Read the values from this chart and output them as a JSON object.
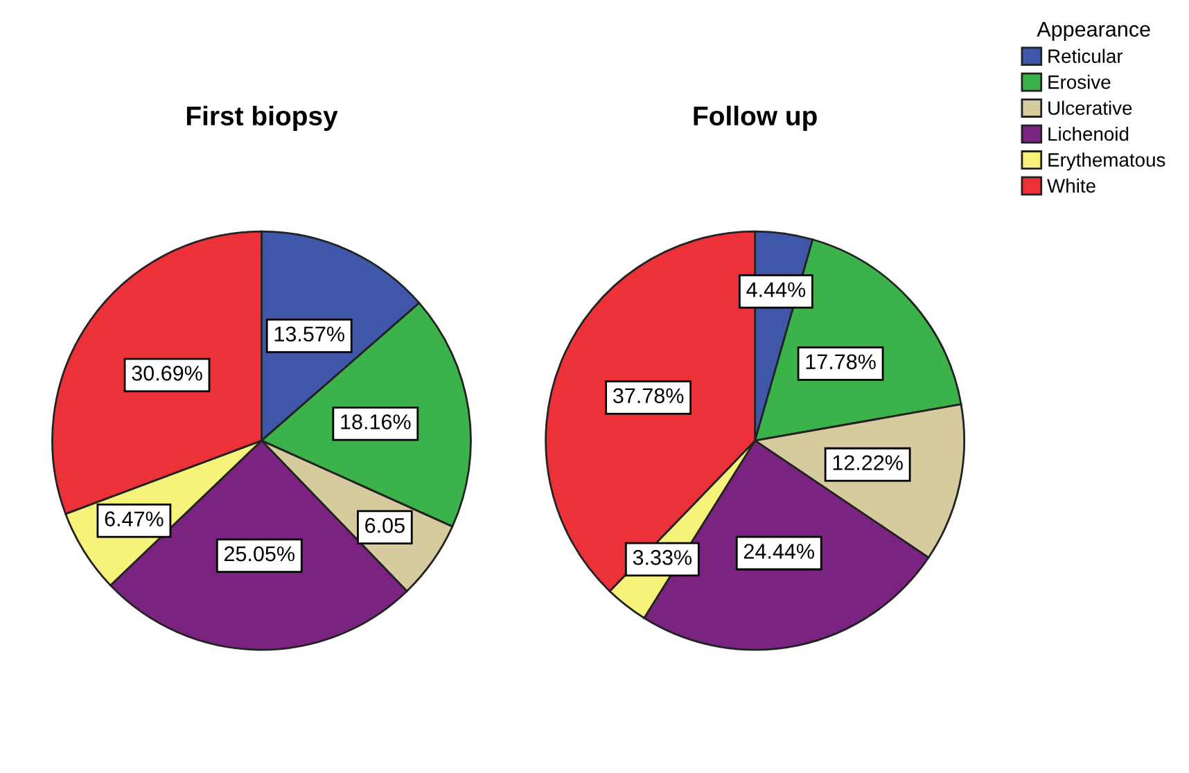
{
  "chart_data": [
    {
      "type": "pie",
      "title": "First biopsy",
      "categories": [
        "Reticular",
        "Erosive",
        "Ulcerative",
        "Lichenoid",
        "Erythematous",
        "White"
      ],
      "values": [
        13.57,
        18.16,
        6.05,
        25.05,
        6.47,
        30.69
      ],
      "value_labels": [
        "13.57%",
        "18.16%",
        "6.05",
        "25.05%",
        "6.47%",
        "30.69%"
      ],
      "colors": [
        "#3f57a8",
        "#3bb34a",
        "#d5cb9e",
        "#7b2381",
        "#f7f279",
        "#ec3238"
      ],
      "legend": "top right",
      "legend_title": "Appearance"
    },
    {
      "type": "pie",
      "title": "Follow up",
      "categories": [
        null,
        null,
        null,
        null,
        null,
        null
      ],
      "values": [
        4.44,
        17.78,
        12.22,
        24.44,
        3.33,
        37.78
      ],
      "value_labels": [
        "4.44%",
        "17.78%",
        "12.22%",
        "24.44%",
        "3.33%",
        "37.78%"
      ],
      "colors": [
        "#3f57a8",
        "#3bb34a",
        "#d5cb9e",
        "#7b2381",
        "#f7f279",
        "#ec3238"
      ],
      "legend": false
    }
  ]
}
